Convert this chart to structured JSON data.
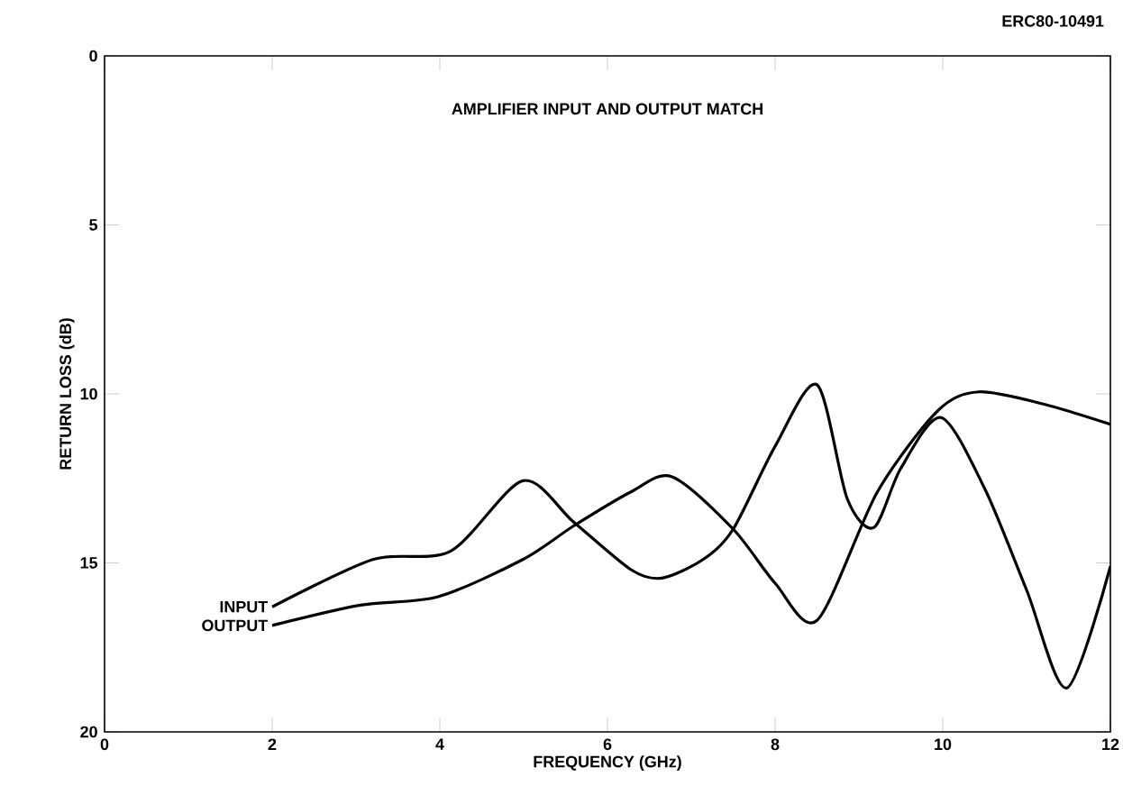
{
  "chart_data": {
    "type": "line",
    "title": "AMPLIFIER INPUT AND OUTPUT MATCH",
    "xlabel": "FREQUENCY (GHz)",
    "ylabel": "RETURN LOSS (dB)",
    "annotations": [
      "ERC80-10491"
    ],
    "xlim": [
      0,
      12
    ],
    "ylim": [
      20,
      0
    ],
    "xticks": [
      0,
      2,
      4,
      6,
      8,
      10,
      12
    ],
    "yticks": [
      0,
      5,
      10,
      15,
      20
    ],
    "grid": false,
    "legend": false,
    "marker": "none",
    "line_style": "solid",
    "series": [
      {
        "name": "INPUT",
        "color": "#000000",
        "x": [
          2,
          3.2,
          4.13,
          4.99,
          5.6,
          6.28,
          6.65,
          7.14,
          7.5,
          8,
          8.5,
          8.86,
          9.18,
          9.5,
          9.98,
          10.5,
          11,
          11.48,
          12
        ],
        "values": [
          16.3,
          14.9,
          14.65,
          12.57,
          13.8,
          15.2,
          15.45,
          14.9,
          14.0,
          11.55,
          9.73,
          13.1,
          13.95,
          12.2,
          10.7,
          12.8,
          15.8,
          18.7,
          15.1
        ]
      },
      {
        "name": "OUTPUT",
        "color": "#000000",
        "x": [
          2,
          3.05,
          3.98,
          4.99,
          5.6,
          6.28,
          6.77,
          7.5,
          8,
          8.5,
          9.22,
          9.94,
          10.43,
          11.2,
          12
        ],
        "values": [
          16.85,
          16.25,
          16.0,
          14.9,
          13.9,
          12.9,
          12.45,
          14.0,
          15.6,
          16.7,
          12.9,
          10.5,
          9.94,
          10.3,
          10.9
        ]
      }
    ]
  }
}
